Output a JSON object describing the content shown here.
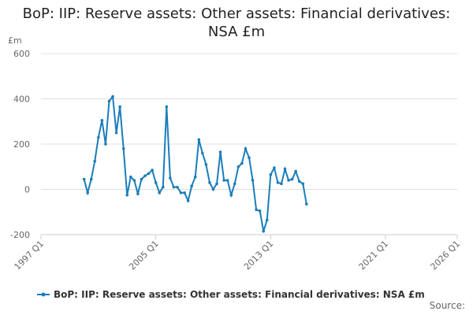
{
  "chart_data": {
    "type": "line",
    "title": "BoP: IIP: Reserve assets: Other assets: Financial derivatives: NSA £m",
    "y_label": "£m",
    "source": "Source:",
    "x": [
      "2000 Q1",
      "2000 Q2",
      "2000 Q3",
      "2000 Q4",
      "2001 Q1",
      "2001 Q2",
      "2001 Q3",
      "2001 Q4",
      "2002 Q1",
      "2002 Q2",
      "2002 Q3",
      "2002 Q4",
      "2003 Q1",
      "2003 Q2",
      "2003 Q3",
      "2003 Q4",
      "2004 Q1",
      "2004 Q2",
      "2004 Q3",
      "2004 Q4",
      "2005 Q1",
      "2005 Q2",
      "2005 Q3",
      "2005 Q4",
      "2006 Q1",
      "2006 Q2",
      "2006 Q3",
      "2006 Q4",
      "2007 Q1",
      "2007 Q2",
      "2007 Q3",
      "2007 Q4",
      "2008 Q1",
      "2008 Q2",
      "2008 Q3",
      "2008 Q4",
      "2009 Q1",
      "2009 Q2",
      "2009 Q3",
      "2009 Q4",
      "2010 Q1",
      "2010 Q2",
      "2010 Q3",
      "2010 Q4",
      "2011 Q1",
      "2011 Q2",
      "2011 Q3",
      "2011 Q4",
      "2012 Q1",
      "2012 Q2",
      "2012 Q3",
      "2012 Q4",
      "2013 Q1",
      "2013 Q2",
      "2013 Q3",
      "2013 Q4",
      "2014 Q1",
      "2014 Q2",
      "2014 Q3",
      "2014 Q4",
      "2015 Q1",
      "2015 Q2",
      "2015 Q3"
    ],
    "series": [
      {
        "name": "BoP: IIP: Reserve assets: Other assets: Financial derivatives: NSA £m",
        "color": "#1b7dba",
        "values": [
          45,
          -15,
          45,
          125,
          230,
          305,
          200,
          390,
          410,
          250,
          365,
          180,
          -25,
          55,
          40,
          -20,
          45,
          60,
          70,
          85,
          30,
          -15,
          10,
          365,
          50,
          10,
          10,
          -15,
          -15,
          -50,
          15,
          55,
          220,
          160,
          110,
          30,
          0,
          25,
          165,
          40,
          40,
          -25,
          25,
          100,
          115,
          180,
          140,
          40,
          -90,
          -95,
          -185,
          -135,
          65,
          95,
          30,
          25,
          90,
          40,
          45,
          80,
          35,
          25,
          -65
        ]
      }
    ],
    "xlim": [
      "1997 Q1",
      "2026 Q1"
    ],
    "xticks": [
      "1997 Q1",
      "2005 Q1",
      "2013 Q1",
      "2021 Q1",
      "2026 Q1"
    ],
    "ylim": [
      -200,
      600
    ],
    "yticks": [
      -200,
      0,
      200,
      400,
      600
    ],
    "grid": true
  }
}
